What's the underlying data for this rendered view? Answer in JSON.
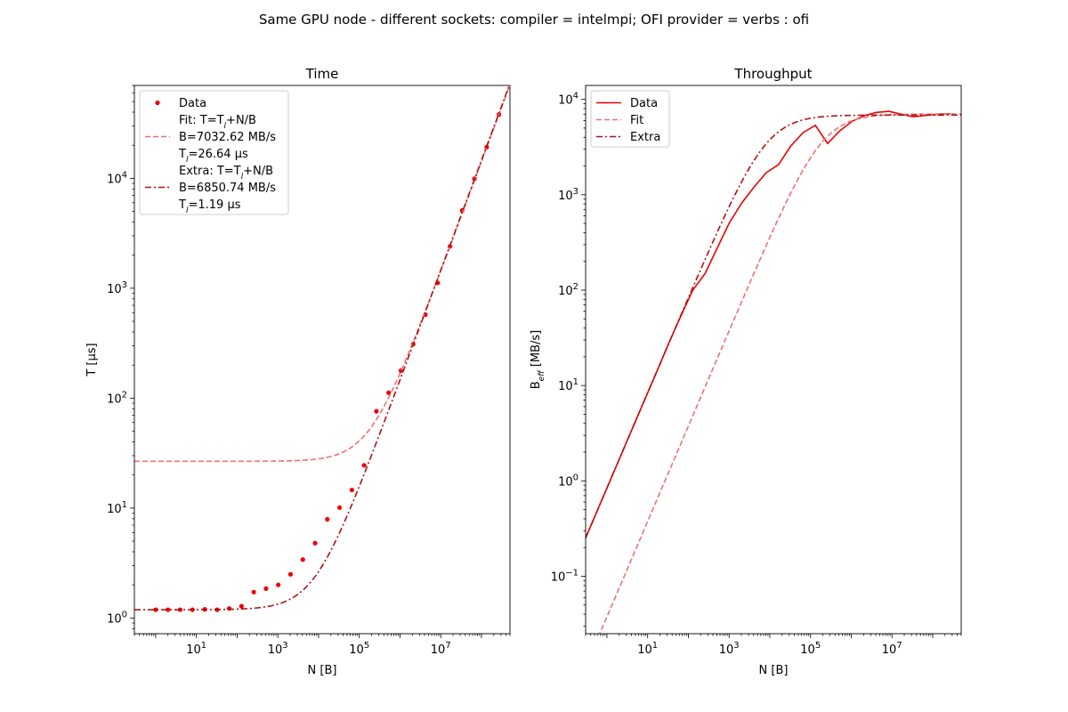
{
  "figure": {
    "title": "Same GPU node - different sockets: compiler = intelmpi; OFI provider = verbs : ofi"
  },
  "colors": {
    "data": "#ee0000",
    "fit": "#f07070",
    "extra": "#b01010"
  },
  "chart_data": [
    {
      "type": "scatter",
      "title": "Time",
      "xlabel": "N [B]",
      "ylabel": "T [µs]",
      "xscale": "log",
      "yscale": "log",
      "xlim": [
        0.3,
        500000000.0
      ],
      "ylim": [
        0.72,
        70000
      ],
      "x_ticks": [
        {
          "value": 10,
          "mant": "10",
          "exp": "1"
        },
        {
          "value": 1000,
          "mant": "10",
          "exp": "3"
        },
        {
          "value": 100000,
          "mant": "10",
          "exp": "5"
        },
        {
          "value": 10000000,
          "mant": "10",
          "exp": "7"
        }
      ],
      "y_ticks": [
        {
          "value": 1,
          "mant": "10",
          "exp": "0"
        },
        {
          "value": 10,
          "mant": "10",
          "exp": "1"
        },
        {
          "value": 100,
          "mant": "10",
          "exp": "2"
        },
        {
          "value": 1000,
          "mant": "10",
          "exp": "3"
        },
        {
          "value": 10000,
          "mant": "10",
          "exp": "4"
        }
      ],
      "legend": {
        "location": "upper left",
        "entries": [
          {
            "series": "Data",
            "lines": [
              "Data"
            ]
          },
          {
            "series": "Fit",
            "lines": [
              "Fit: T=T_l+N/B",
              "B=7032.62 MB/s",
              "T_l=26.64 µs"
            ]
          },
          {
            "series": "Extra",
            "lines": [
              "Extra: T=T_l+N/B",
              "B=6850.74 MB/s",
              "T_l=1.19 µs"
            ]
          }
        ]
      },
      "series": [
        {
          "name": "Data",
          "style": "points",
          "x": [
            1,
            2,
            4,
            8,
            16,
            32,
            64,
            128,
            256,
            512,
            1024,
            2048,
            4096,
            8192,
            16384,
            32768,
            65536,
            131072,
            262144,
            524288,
            1048576,
            2097152,
            4194304,
            8388608,
            16777216,
            33554432,
            67108864,
            134217728,
            268435456
          ],
          "y": [
            1.19,
            1.19,
            1.19,
            1.19,
            1.2,
            1.19,
            1.22,
            1.28,
            1.72,
            1.85,
            2.0,
            2.5,
            3.4,
            4.8,
            7.9,
            10.1,
            14.6,
            24.5,
            76,
            112,
            178,
            310,
            575,
            1120,
            2400,
            5100,
            9900,
            19200,
            38000
          ]
        },
        {
          "name": "Fit",
          "style": "dashed",
          "B": 7032.62,
          "Tl": 26.64
        },
        {
          "name": "Extra",
          "style": "dashdot",
          "B": 6850.74,
          "Tl": 1.19
        }
      ]
    },
    {
      "type": "line",
      "title": "Throughput",
      "xlabel": "N [B]",
      "ylabel": "B_eff [MB/s]",
      "xscale": "log",
      "yscale": "log",
      "xlim": [
        0.3,
        500000000.0
      ],
      "ylim": [
        0.025,
        14000
      ],
      "x_ticks": [
        {
          "value": 10,
          "mant": "10",
          "exp": "1"
        },
        {
          "value": 1000,
          "mant": "10",
          "exp": "3"
        },
        {
          "value": 100000,
          "mant": "10",
          "exp": "5"
        },
        {
          "value": 10000000,
          "mant": "10",
          "exp": "7"
        }
      ],
      "y_ticks": [
        {
          "value": 0.1,
          "mant": "10",
          "exp": "−1"
        },
        {
          "value": 1,
          "mant": "10",
          "exp": "0"
        },
        {
          "value": 10,
          "mant": "10",
          "exp": "1"
        },
        {
          "value": 100,
          "mant": "10",
          "exp": "2"
        },
        {
          "value": 1000,
          "mant": "10",
          "exp": "3"
        },
        {
          "value": 10000,
          "mant": "10",
          "exp": "4"
        }
      ],
      "legend": {
        "location": "upper left",
        "entries": [
          {
            "series": "Data",
            "lines": [
              "Data"
            ]
          },
          {
            "series": "Fit",
            "lines": [
              "Fit"
            ]
          },
          {
            "series": "Extra",
            "lines": [
              "Extra"
            ]
          }
        ]
      },
      "series": [
        {
          "name": "Data",
          "style": "solid"
        },
        {
          "name": "Fit",
          "style": "dashed",
          "B": 7032.62,
          "Tl": 26.64
        },
        {
          "name": "Extra",
          "style": "dashdot",
          "B": 6850.74,
          "Tl": 1.19
        }
      ]
    }
  ]
}
